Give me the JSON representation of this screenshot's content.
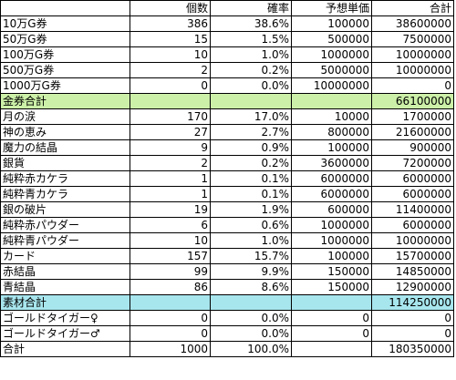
{
  "header": [
    "",
    "個数",
    "確率",
    "予想単価",
    "合計"
  ],
  "rows": [
    {
      "type": "item",
      "cells": [
        "10万G券",
        "386",
        "38.6%",
        "100000",
        "38600000"
      ]
    },
    {
      "type": "item",
      "cells": [
        "50万G券",
        "15",
        "1.5%",
        "500000",
        "7500000"
      ]
    },
    {
      "type": "item",
      "cells": [
        "100万G券",
        "10",
        "1.0%",
        "1000000",
        "10000000"
      ]
    },
    {
      "type": "item",
      "cells": [
        "500万G券",
        "2",
        "0.2%",
        "5000000",
        "10000000"
      ]
    },
    {
      "type": "item",
      "cells": [
        "1000万G券",
        "0",
        "0.0%",
        "10000000",
        "0"
      ]
    },
    {
      "type": "subtotal-gold",
      "cells": [
        "金券合計",
        "",
        "",
        "",
        "66100000"
      ]
    },
    {
      "type": "item",
      "cells": [
        "月の涙",
        "170",
        "17.0%",
        "10000",
        "1700000"
      ]
    },
    {
      "type": "item",
      "cells": [
        "神の恵み",
        "27",
        "2.7%",
        "800000",
        "21600000"
      ]
    },
    {
      "type": "item",
      "cells": [
        "魔力の結晶",
        "9",
        "0.9%",
        "100000",
        "900000"
      ]
    },
    {
      "type": "item",
      "cells": [
        "銀貨",
        "2",
        "0.2%",
        "3600000",
        "7200000"
      ]
    },
    {
      "type": "item",
      "cells": [
        "純粋赤カケラ",
        "1",
        "0.1%",
        "6000000",
        "6000000"
      ]
    },
    {
      "type": "item",
      "cells": [
        "純粋青カケラ",
        "1",
        "0.1%",
        "6000000",
        "6000000"
      ]
    },
    {
      "type": "item",
      "cells": [
        "銀の破片",
        "19",
        "1.9%",
        "600000",
        "11400000"
      ]
    },
    {
      "type": "item",
      "cells": [
        "純粋赤パウダー",
        "6",
        "0.6%",
        "1000000",
        "6000000"
      ]
    },
    {
      "type": "item",
      "cells": [
        "純粋青パウダー",
        "10",
        "1.0%",
        "1000000",
        "10000000"
      ]
    },
    {
      "type": "item",
      "cells": [
        "カード",
        "157",
        "15.7%",
        "100000",
        "15700000"
      ]
    },
    {
      "type": "item",
      "cells": [
        "赤結晶",
        "99",
        "9.9%",
        "150000",
        "14850000"
      ]
    },
    {
      "type": "item",
      "cells": [
        "青結晶",
        "86",
        "8.6%",
        "150000",
        "12900000"
      ]
    },
    {
      "type": "subtotal",
      "cells": [
        "素材合計",
        "",
        "",
        "",
        "114250000"
      ]
    },
    {
      "type": "item",
      "cells": [
        "ゴールドタイガー♀",
        "0",
        "0.0%",
        "0",
        "0"
      ]
    },
    {
      "type": "item",
      "cells": [
        "ゴールドタイガー♂",
        "0",
        "0.0%",
        "0",
        "0"
      ]
    },
    {
      "type": "total",
      "cells": [
        "合計",
        "1000",
        "100.0%",
        "",
        "180350000"
      ]
    }
  ]
}
